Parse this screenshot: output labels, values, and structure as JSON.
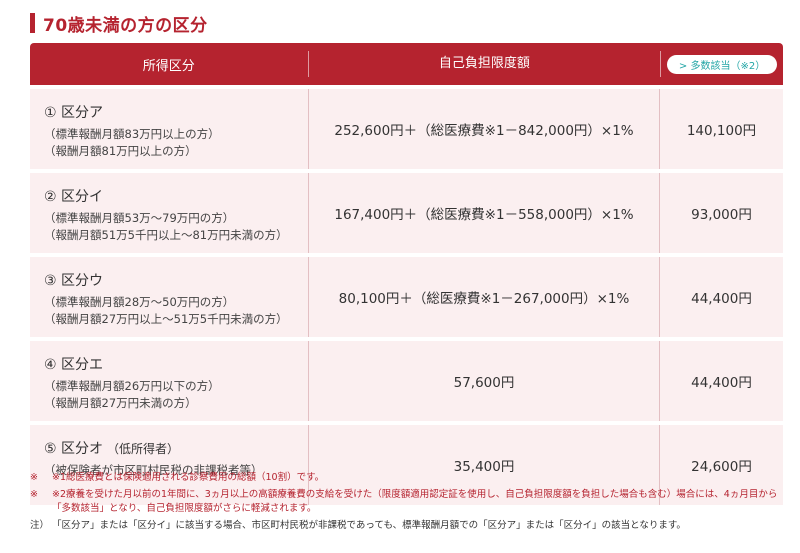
{
  "title": "70歳未満の方の区分",
  "header": {
    "col1": "所得区分",
    "col2": "自己負担限度額",
    "col3_badge": "> 多数該当（※2）"
  },
  "rows": [
    {
      "category": "① 区分ア",
      "category_note": "",
      "lines": [
        "（標準報酬月額83万円以上の方）",
        "（報酬月額81万円以上の方）"
      ],
      "limit": "252,600円＋（総医療費※1－842,000円）×1%",
      "multiple": "140,100円"
    },
    {
      "category": "② 区分イ",
      "category_note": "",
      "lines": [
        "（標準報酬月額53万～79万円の方）",
        "（報酬月額51万5千円以上～81万円未満の方）"
      ],
      "limit": "167,400円＋（総医療費※1－558,000円）×1%",
      "multiple": "93,000円"
    },
    {
      "category": "③ 区分ウ",
      "category_note": "",
      "lines": [
        "（標準報酬月額28万～50万円の方）",
        "（報酬月額27万円以上～51万5千円未満の方）"
      ],
      "limit": "80,100円＋（総医療費※1－267,000円）×1%",
      "multiple": "44,400円"
    },
    {
      "category": "④ 区分エ",
      "category_note": "",
      "lines": [
        "（標準報酬月額26万円以下の方）",
        "（報酬月額27万円未満の方）"
      ],
      "limit": "57,600円",
      "multiple": "44,400円"
    },
    {
      "category": "⑤ 区分オ",
      "category_note": "（低所得者）",
      "lines": [
        "（被保険者が市区町村民税の非課税者等）",
        ""
      ],
      "limit": "35,400円",
      "multiple": "24,600円"
    }
  ],
  "notes": [
    {
      "mark": "※",
      "text": "※1総医療費とは保険適用される診察費用の総額（10割）です。"
    },
    {
      "mark": "※",
      "text": "※2療養を受けた月以前の1年間に、3ヵ月以上の高額療養費の支給を受けた（限度額適用認定証を使用し、自己負担限度額を負担した場合も含む）場合には、4ヵ月目から「多数該当」となり、自己負担限度額がさらに軽減されます。"
    },
    {
      "mark": "注）",
      "text": "「区分ア」または「区分イ」に該当する場合、市区町村民税が非課税であっても、標準報酬月額での「区分ア」または「区分イ」の該当となります。"
    }
  ],
  "colors": {
    "accent": "#b5232f",
    "row_bg": "#fbeff0",
    "badge_text": "#23a6a6"
  }
}
